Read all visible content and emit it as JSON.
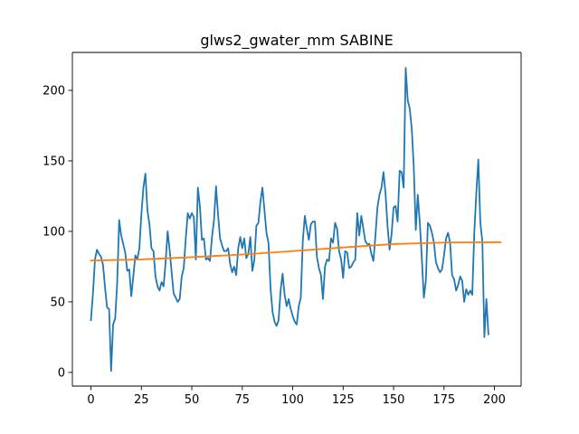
{
  "chart_data": {
    "type": "line",
    "title": "glws2_gwater_mm SABINE",
    "xlabel": "",
    "ylabel": "",
    "xlim": [
      -9.2,
      213.2
    ],
    "ylim": [
      -9.7,
      226.9
    ],
    "grid": false,
    "x_ticks": [
      0,
      25,
      50,
      75,
      100,
      125,
      150,
      175,
      200
    ],
    "x_tick_labels": [
      "0",
      "25",
      "50",
      "75",
      "100",
      "125",
      "150",
      "175",
      "200"
    ],
    "y_ticks": [
      0,
      50,
      100,
      150,
      200
    ],
    "y_tick_labels": [
      "0",
      "50",
      "100",
      "150",
      "200"
    ],
    "series": [
      {
        "color": "#1f77b4",
        "x_start": 0,
        "x_step": 1,
        "values": [
          37,
          56,
          80,
          87,
          84,
          82,
          76,
          60,
          46,
          45,
          1,
          34,
          38,
          63,
          108,
          97,
          91,
          85,
          72,
          73,
          54,
          68,
          83,
          80,
          88,
          112,
          131,
          141,
          115,
          105,
          88,
          86,
          68,
          61,
          58,
          64,
          61,
          78,
          100,
          87,
          71,
          56,
          53,
          50,
          52,
          68,
          74,
          95,
          113,
          109,
          113,
          110,
          80,
          131,
          118,
          94,
          95,
          80,
          81,
          79,
          96,
          108,
          132,
          112,
          95,
          90,
          86,
          86,
          88,
          77,
          71,
          75,
          69,
          88,
          96,
          88,
          95,
          81,
          84,
          96,
          72,
          80,
          104,
          106,
          121,
          131,
          115,
          99,
          92,
          60,
          43,
          36,
          33,
          37,
          58,
          70,
          55,
          47,
          52,
          45,
          40,
          36,
          34,
          47,
          53,
          93,
          111,
          102,
          94,
          105,
          107,
          107,
          82,
          74,
          69,
          52,
          75,
          80,
          79,
          95,
          92,
          106,
          102,
          86,
          80,
          67,
          86,
          85,
          74,
          75,
          78,
          80,
          113,
          97,
          111,
          102,
          93,
          91,
          91,
          84,
          79,
          97,
          117,
          126,
          131,
          142,
          127,
          104,
          87,
          98,
          117,
          118,
          107,
          143,
          142,
          131,
          216,
          193,
          187,
          173,
          146,
          101,
          126,
          106,
          81,
          53,
          65,
          106,
          104,
          99,
          92,
          78,
          74,
          71,
          73,
          83,
          95,
          99,
          92,
          69,
          66,
          58,
          62,
          68,
          65,
          50,
          59,
          55,
          58,
          55,
          99,
          127,
          151,
          106,
          93,
          25,
          52,
          27
        ]
      },
      {
        "color": "#ff7f0e",
        "x": [
          0,
          25,
          50,
          75,
          100,
          125,
          150,
          175,
          203
        ],
        "values": [
          79.3,
          80.1,
          81.7,
          83.6,
          86.0,
          88.6,
          91.0,
          92.1,
          92.3
        ]
      }
    ]
  }
}
